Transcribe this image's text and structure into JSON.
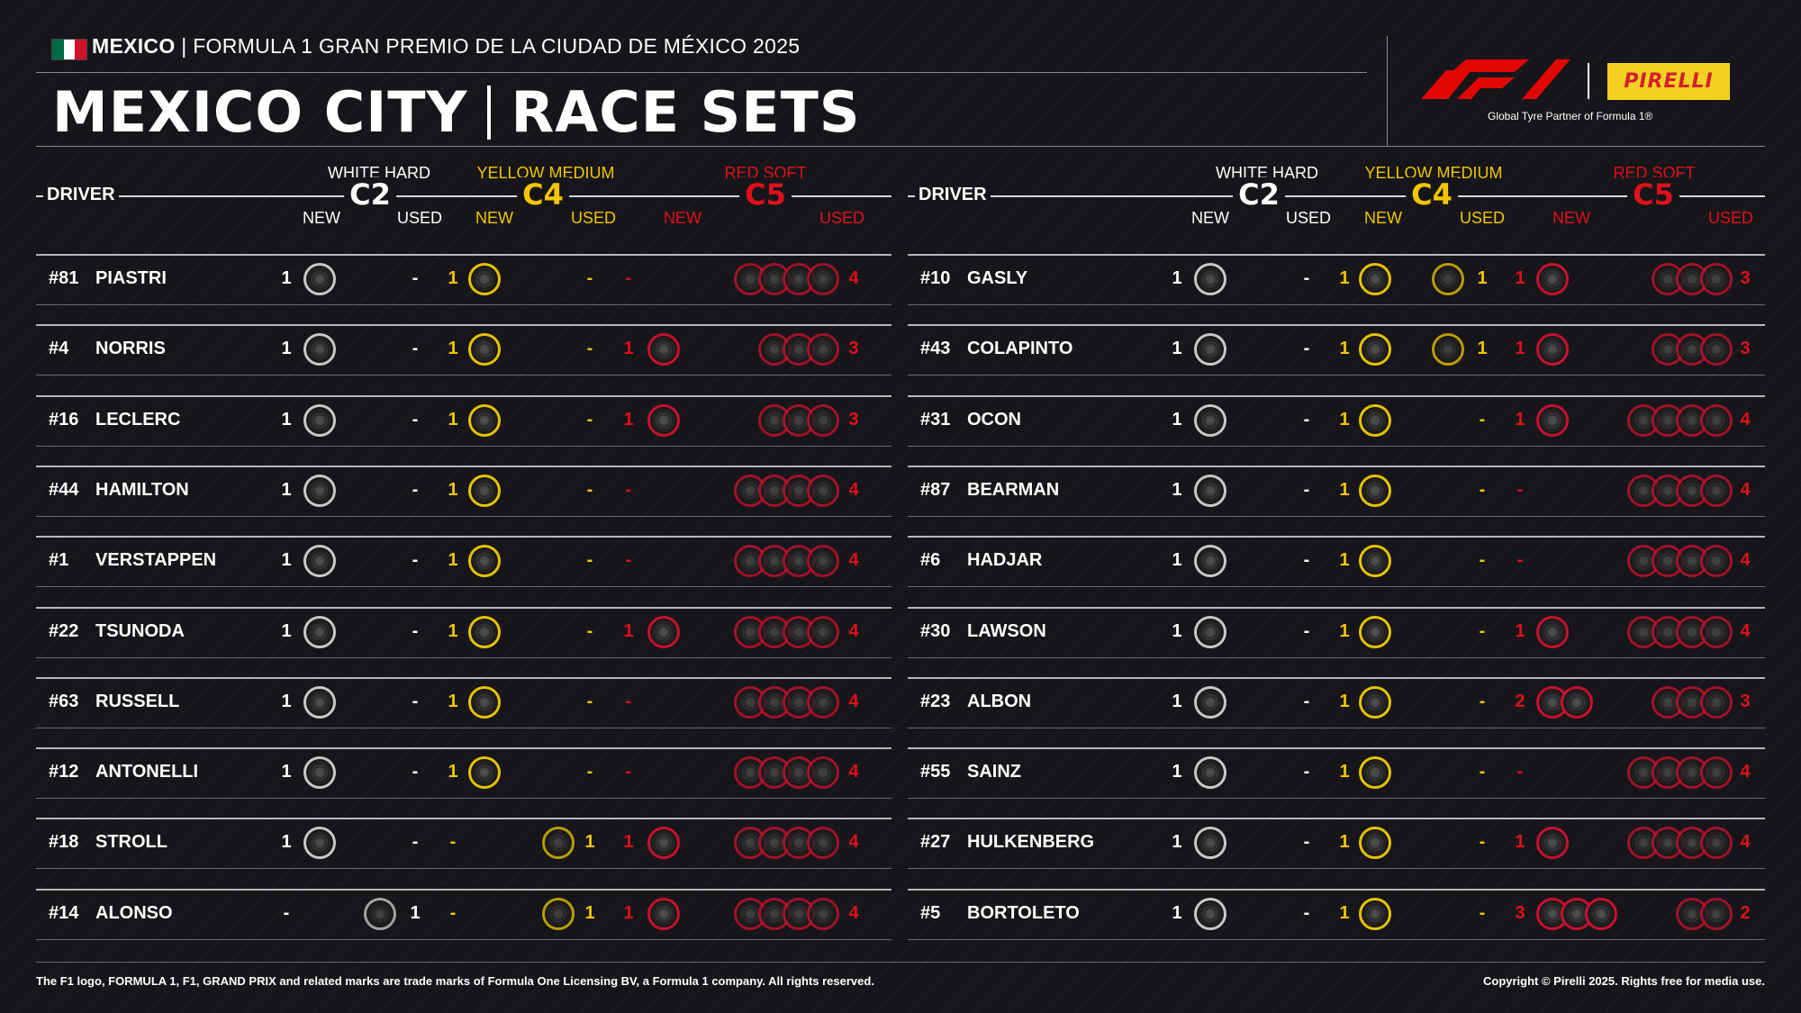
{
  "header": {
    "country": "MEXICO",
    "event": "FORMULA 1 GRAN PREMIO DE LA CIUDAD DE MÉXICO 2025",
    "title_left": "MEXICO CITY",
    "title_right": "RACE SETS",
    "flag_colors": [
      "#006847",
      "#ffffff",
      "#ce1126"
    ]
  },
  "logos": {
    "f1_icon": "f1-logo-icon",
    "pirelli_label": "PIRELLI",
    "partner_text": "Global Tyre Partner of Formula 1®",
    "f1_color": "#e10600",
    "pirelli_yellow": "#f3d21f",
    "pirelli_red": "#d3202e"
  },
  "columns": {
    "driver": "DRIVER",
    "hard_name": "WHITE HARD",
    "hard_code": "C2",
    "medium_name": "YELLOW MEDIUM",
    "medium_code": "C4",
    "soft_name": "RED SOFT",
    "soft_code": "C5",
    "new": "NEW",
    "used": "USED",
    "colors": {
      "hard": "#ffffff",
      "medium": "#f2c500",
      "soft": "#e0101a"
    }
  },
  "left_drivers": [
    {
      "num": "#81",
      "name": "PIASTRI",
      "hard_new": "1",
      "hard_used": "-",
      "med_new": "1",
      "med_used": "-",
      "soft_new": "-",
      "soft_used": "4"
    },
    {
      "num": "#4",
      "name": "NORRIS",
      "hard_new": "1",
      "hard_used": "-",
      "med_new": "1",
      "med_used": "-",
      "soft_new": "1",
      "soft_used": "3"
    },
    {
      "num": "#16",
      "name": "LECLERC",
      "hard_new": "1",
      "hard_used": "-",
      "med_new": "1",
      "med_used": "-",
      "soft_new": "1",
      "soft_used": "3"
    },
    {
      "num": "#44",
      "name": "HAMILTON",
      "hard_new": "1",
      "hard_used": "-",
      "med_new": "1",
      "med_used": "-",
      "soft_new": "-",
      "soft_used": "4"
    },
    {
      "num": "#1",
      "name": "VERSTAPPEN",
      "hard_new": "1",
      "hard_used": "-",
      "med_new": "1",
      "med_used": "-",
      "soft_new": "-",
      "soft_used": "4"
    },
    {
      "num": "#22",
      "name": "TSUNODA",
      "hard_new": "1",
      "hard_used": "-",
      "med_new": "1",
      "med_used": "-",
      "soft_new": "1",
      "soft_used": "4"
    },
    {
      "num": "#63",
      "name": "RUSSELL",
      "hard_new": "1",
      "hard_used": "-",
      "med_new": "1",
      "med_used": "-",
      "soft_new": "-",
      "soft_used": "4"
    },
    {
      "num": "#12",
      "name": "ANTONELLI",
      "hard_new": "1",
      "hard_used": "-",
      "med_new": "1",
      "med_used": "-",
      "soft_new": "-",
      "soft_used": "4"
    },
    {
      "num": "#18",
      "name": "STROLL",
      "hard_new": "1",
      "hard_used": "-",
      "med_new": "-",
      "med_used": "1",
      "soft_new": "1",
      "soft_used": "4"
    },
    {
      "num": "#14",
      "name": "ALONSO",
      "hard_new": "-",
      "hard_used": "1",
      "med_new": "-",
      "med_used": "1",
      "soft_new": "1",
      "soft_used": "4"
    }
  ],
  "right_drivers": [
    {
      "num": "#10",
      "name": "GASLY",
      "hard_new": "1",
      "hard_used": "-",
      "med_new": "1",
      "med_used": "1",
      "soft_new": "1",
      "soft_used": "3"
    },
    {
      "num": "#43",
      "name": "COLAPINTO",
      "hard_new": "1",
      "hard_used": "-",
      "med_new": "1",
      "med_used": "1",
      "soft_new": "1",
      "soft_used": "3"
    },
    {
      "num": "#31",
      "name": "OCON",
      "hard_new": "1",
      "hard_used": "-",
      "med_new": "1",
      "med_used": "-",
      "soft_new": "1",
      "soft_used": "4"
    },
    {
      "num": "#87",
      "name": "BEARMAN",
      "hard_new": "1",
      "hard_used": "-",
      "med_new": "1",
      "med_used": "-",
      "soft_new": "-",
      "soft_used": "4"
    },
    {
      "num": "#6",
      "name": "HADJAR",
      "hard_new": "1",
      "hard_used": "-",
      "med_new": "1",
      "med_used": "-",
      "soft_new": "-",
      "soft_used": "4"
    },
    {
      "num": "#30",
      "name": "LAWSON",
      "hard_new": "1",
      "hard_used": "-",
      "med_new": "1",
      "med_used": "-",
      "soft_new": "1",
      "soft_used": "4"
    },
    {
      "num": "#23",
      "name": "ALBON",
      "hard_new": "1",
      "hard_used": "-",
      "med_new": "1",
      "med_used": "-",
      "soft_new": "2",
      "soft_used": "3"
    },
    {
      "num": "#55",
      "name": "SAINZ",
      "hard_new": "1",
      "hard_used": "-",
      "med_new": "1",
      "med_used": "-",
      "soft_new": "-",
      "soft_used": "4"
    },
    {
      "num": "#27",
      "name": "HULKENBERG",
      "hard_new": "1",
      "hard_used": "-",
      "med_new": "1",
      "med_used": "-",
      "soft_new": "1",
      "soft_used": "4"
    },
    {
      "num": "#5",
      "name": "BORTOLETO",
      "hard_new": "1",
      "hard_used": "-",
      "med_new": "1",
      "med_used": "-",
      "soft_new": "3",
      "soft_used": "2"
    }
  ],
  "footer": {
    "trademark": "The F1 logo, FORMULA 1, F1, GRAND PRIX and related marks are trade marks of Formula One Licensing BV, a Formula 1 company. All rights reserved.",
    "copyright": "Copyright © Pirelli 2025. Rights free for media use."
  }
}
